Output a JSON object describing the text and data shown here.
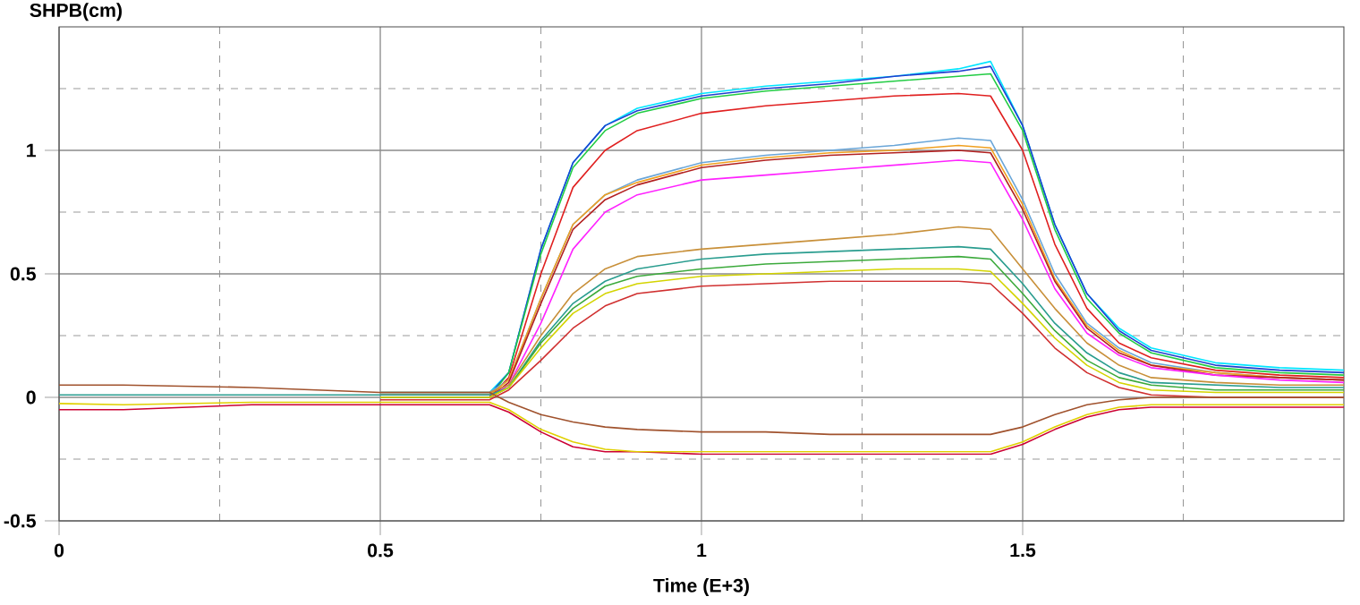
{
  "chart_data": {
    "type": "line",
    "xlabel": "Time (E+3)",
    "ylabel": "SHPB(cm)",
    "x": [
      0,
      0.1,
      0.3,
      0.5,
      0.67,
      0.7,
      0.75,
      0.8,
      0.85,
      0.9,
      1.0,
      1.1,
      1.2,
      1.3,
      1.4,
      1.45,
      1.5,
      1.55,
      1.6,
      1.65,
      1.7,
      1.8,
      1.9,
      2.0
    ],
    "xlim": [
      0,
      2
    ],
    "ylim": [
      -0.5,
      1.5
    ],
    "xticks": [
      0,
      {
        "value": 0.25,
        "label": null
      },
      0.5,
      {
        "value": 0.75,
        "label": null
      },
      1,
      {
        "value": 1.25,
        "label": null
      },
      1.5,
      {
        "value": 1.75,
        "label": null
      }
    ],
    "yticks": [
      -0.5,
      {
        "value": -0.25,
        "label": null
      },
      0,
      {
        "value": 0.25,
        "label": null
      },
      0.5,
      {
        "value": 0.75,
        "label": null
      },
      1,
      {
        "value": 1.25,
        "label": null
      }
    ],
    "grid": true,
    "series": [
      {
        "color": "#00e5ff",
        "values": [
          null,
          null,
          null,
          0.02,
          0.02,
          0.1,
          0.6,
          0.95,
          1.1,
          1.17,
          1.23,
          1.26,
          1.28,
          1.3,
          1.33,
          1.36,
          1.1,
          0.7,
          0.42,
          0.28,
          0.2,
          0.14,
          0.12,
          0.11
        ]
      },
      {
        "color": "#1f3fd0",
        "values": [
          null,
          null,
          null,
          0.01,
          0.01,
          0.1,
          0.6,
          0.95,
          1.1,
          1.16,
          1.22,
          1.25,
          1.27,
          1.3,
          1.32,
          1.34,
          1.1,
          0.7,
          0.42,
          0.27,
          0.19,
          0.13,
          0.11,
          0.1
        ]
      },
      {
        "color": "#22cc44",
        "values": [
          null,
          null,
          null,
          0,
          0,
          0.1,
          0.58,
          0.93,
          1.08,
          1.15,
          1.21,
          1.24,
          1.26,
          1.28,
          1.3,
          1.31,
          1.08,
          0.68,
          0.4,
          0.26,
          0.18,
          0.12,
          0.1,
          0.09
        ]
      },
      {
        "color": "#e02020",
        "values": [
          null,
          null,
          null,
          0,
          0,
          0.08,
          0.5,
          0.85,
          1.0,
          1.08,
          1.15,
          1.18,
          1.2,
          1.22,
          1.23,
          1.22,
          1.0,
          0.62,
          0.36,
          0.22,
          0.16,
          0.11,
          0.09,
          0.08
        ]
      },
      {
        "color": "#6aa6d8",
        "values": [
          null,
          null,
          null,
          0.02,
          0.02,
          0.07,
          0.4,
          0.7,
          0.82,
          0.88,
          0.95,
          0.98,
          1.0,
          1.02,
          1.05,
          1.04,
          0.8,
          0.5,
          0.3,
          0.2,
          0.14,
          0.1,
          0.08,
          0.07
        ]
      },
      {
        "color": "#f0a020",
        "values": [
          null,
          null,
          null,
          0.01,
          0.01,
          0.07,
          0.4,
          0.7,
          0.82,
          0.87,
          0.94,
          0.97,
          0.99,
          1.0,
          1.02,
          1.01,
          0.78,
          0.48,
          0.29,
          0.19,
          0.13,
          0.1,
          0.08,
          0.07
        ]
      },
      {
        "color": "#b22020",
        "values": [
          null,
          null,
          null,
          0,
          0,
          0.06,
          0.38,
          0.68,
          0.8,
          0.86,
          0.93,
          0.96,
          0.98,
          0.99,
          1.0,
          0.99,
          0.76,
          0.47,
          0.28,
          0.18,
          0.13,
          0.09,
          0.08,
          0.07
        ]
      },
      {
        "color": "#ff22ff",
        "values": [
          null,
          null,
          null,
          0,
          0,
          0.05,
          0.3,
          0.6,
          0.75,
          0.82,
          0.88,
          0.9,
          0.92,
          0.94,
          0.96,
          0.95,
          0.72,
          0.44,
          0.26,
          0.17,
          0.12,
          0.09,
          0.07,
          0.06
        ]
      },
      {
        "color": "#c8903a",
        "values": [
          null,
          null,
          null,
          0.02,
          0.02,
          0.05,
          0.25,
          0.42,
          0.52,
          0.57,
          0.6,
          0.62,
          0.64,
          0.66,
          0.69,
          0.68,
          0.52,
          0.36,
          0.22,
          0.13,
          0.08,
          0.06,
          0.05,
          0.05
        ]
      },
      {
        "color": "#2a9d8f",
        "values": [
          0.01,
          0.01,
          0.01,
          0.01,
          0.01,
          0.04,
          0.23,
          0.38,
          0.47,
          0.52,
          0.56,
          0.58,
          0.59,
          0.6,
          0.61,
          0.6,
          0.46,
          0.3,
          0.18,
          0.1,
          0.06,
          0.05,
          0.04,
          0.04
        ]
      },
      {
        "color": "#3caa3c",
        "values": [
          null,
          null,
          null,
          0,
          0,
          0.04,
          0.22,
          0.36,
          0.45,
          0.49,
          0.52,
          0.54,
          0.55,
          0.56,
          0.57,
          0.56,
          0.42,
          0.27,
          0.15,
          0.08,
          0.05,
          0.03,
          0.03,
          0.03
        ]
      },
      {
        "color": "#d4d400",
        "values": [
          null,
          null,
          null,
          0,
          0,
          0.04,
          0.2,
          0.34,
          0.42,
          0.46,
          0.49,
          0.5,
          0.51,
          0.52,
          0.52,
          0.51,
          0.38,
          0.24,
          0.13,
          0.06,
          0.03,
          0.02,
          0.02,
          0.02
        ]
      },
      {
        "color": "#d03030",
        "values": [
          null,
          null,
          null,
          -0.01,
          -0.01,
          0.03,
          0.15,
          0.28,
          0.37,
          0.42,
          0.45,
          0.46,
          0.47,
          0.47,
          0.47,
          0.46,
          0.34,
          0.2,
          0.1,
          0.04,
          0.01,
          0,
          0,
          0
        ]
      },
      {
        "color": "#a0522d",
        "values": [
          0.05,
          0.05,
          0.04,
          0.02,
          0.02,
          -0.02,
          -0.07,
          -0.1,
          -0.12,
          -0.13,
          -0.14,
          -0.14,
          -0.15,
          -0.15,
          -0.15,
          -0.15,
          -0.12,
          -0.07,
          -0.03,
          -0.01,
          0,
          0,
          0,
          0
        ]
      },
      {
        "color": "#cc0033",
        "values": [
          -0.05,
          -0.05,
          -0.03,
          -0.03,
          -0.03,
          -0.06,
          -0.14,
          -0.2,
          -0.22,
          -0.22,
          -0.23,
          -0.23,
          -0.23,
          -0.23,
          -0.23,
          -0.23,
          -0.19,
          -0.13,
          -0.08,
          -0.05,
          -0.04,
          -0.04,
          -0.04,
          -0.04
        ]
      },
      {
        "color": "#e0d000",
        "values": [
          -0.025,
          -0.03,
          -0.02,
          -0.02,
          -0.02,
          -0.05,
          -0.13,
          -0.18,
          -0.21,
          -0.22,
          -0.22,
          -0.22,
          -0.22,
          -0.22,
          -0.22,
          -0.22,
          -0.18,
          -0.12,
          -0.07,
          -0.04,
          -0.03,
          -0.03,
          -0.03,
          -0.03
        ]
      }
    ]
  }
}
